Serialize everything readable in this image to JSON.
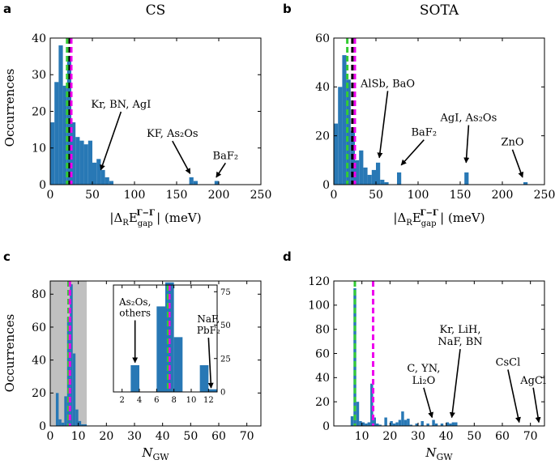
{
  "colors": {
    "bar": "#2878b5",
    "green": "#33cc33",
    "magenta": "#ee00ee",
    "black": "#000000",
    "shade": "#c0c0c0"
  },
  "panel_labels": [
    "a",
    "b",
    "c",
    "d"
  ],
  "chart_data": [
    {
      "id": "a",
      "type": "bar",
      "title": "CS",
      "xlabel": "|ΔR E_gap^{Γ−Γ}| (meV)",
      "ylabel": "Occurrences",
      "xlim": [
        0,
        250
      ],
      "ylim": [
        0,
        40
      ],
      "xticks": [
        0,
        50,
        100,
        150,
        200,
        250
      ],
      "yticks": [
        0,
        10,
        20,
        30,
        40
      ],
      "bin_width": 5,
      "bins": [
        {
          "x": 0,
          "y": 17
        },
        {
          "x": 5,
          "y": 28
        },
        {
          "x": 10,
          "y": 38
        },
        {
          "x": 15,
          "y": 27
        },
        {
          "x": 20,
          "y": 35
        },
        {
          "x": 25,
          "y": 17
        },
        {
          "x": 30,
          "y": 13
        },
        {
          "x": 35,
          "y": 12
        },
        {
          "x": 40,
          "y": 11
        },
        {
          "x": 45,
          "y": 12
        },
        {
          "x": 50,
          "y": 6
        },
        {
          "x": 55,
          "y": 7
        },
        {
          "x": 60,
          "y": 4
        },
        {
          "x": 65,
          "y": 2
        },
        {
          "x": 70,
          "y": 1
        },
        {
          "x": 165,
          "y": 2
        },
        {
          "x": 170,
          "y": 1
        },
        {
          "x": 195,
          "y": 1
        }
      ],
      "vlines": [
        {
          "x": 20,
          "color": "green"
        },
        {
          "x": 23,
          "color": "black"
        },
        {
          "x": 25,
          "color": "magenta"
        }
      ],
      "annotations": [
        {
          "lines": [
            "Kr, BN, AgI"
          ],
          "x": 84,
          "y": 21,
          "ax": 60,
          "ay": 4
        },
        {
          "lines": [
            "KF, As₂Os"
          ],
          "x": 145,
          "y": 13,
          "ax": 166,
          "ay": 3
        },
        {
          "lines": [
            "BaF₂"
          ],
          "x": 208,
          "y": 7,
          "ax": 197,
          "ay": 2
        }
      ]
    },
    {
      "id": "b",
      "type": "bar",
      "title": "SOTA",
      "xlabel": "|ΔR E_gap^{Γ−Γ}| (meV)",
      "ylabel": "",
      "xlim": [
        0,
        250
      ],
      "ylim": [
        0,
        60
      ],
      "xticks": [
        0,
        50,
        100,
        150,
        200,
        250
      ],
      "yticks": [
        0,
        20,
        40,
        60
      ],
      "bin_width": 5,
      "bins": [
        {
          "x": 0,
          "y": 25
        },
        {
          "x": 5,
          "y": 40
        },
        {
          "x": 10,
          "y": 53
        },
        {
          "x": 15,
          "y": 43
        },
        {
          "x": 20,
          "y": 22
        },
        {
          "x": 25,
          "y": 10
        },
        {
          "x": 30,
          "y": 14
        },
        {
          "x": 35,
          "y": 7
        },
        {
          "x": 40,
          "y": 4
        },
        {
          "x": 45,
          "y": 6
        },
        {
          "x": 50,
          "y": 9
        },
        {
          "x": 55,
          "y": 2
        },
        {
          "x": 60,
          "y": 1
        },
        {
          "x": 75,
          "y": 5
        },
        {
          "x": 155,
          "y": 5
        },
        {
          "x": 225,
          "y": 1
        }
      ],
      "vlines": [
        {
          "x": 16,
          "color": "green"
        },
        {
          "x": 22,
          "color": "black"
        },
        {
          "x": 25,
          "color": "magenta"
        }
      ],
      "annotations": [
        {
          "lines": [
            "AlSb, BaO"
          ],
          "x": 64,
          "y": 40,
          "ax": 54,
          "ay": 11
        },
        {
          "lines": [
            "BaF₂"
          ],
          "x": 107,
          "y": 20,
          "ax": 80,
          "ay": 8
        },
        {
          "lines": [
            "AgI, As₂Os"
          ],
          "x": 160,
          "y": 26,
          "ax": 157,
          "ay": 9
        },
        {
          "lines": [
            "ZnO"
          ],
          "x": 212,
          "y": 16,
          "ax": 224,
          "ay": 3
        }
      ]
    },
    {
      "id": "c",
      "type": "bar",
      "title": "",
      "xlabel": "N_GW",
      "ylabel": "Occurrences",
      "xlim": [
        0,
        75
      ],
      "ylim": [
        0,
        88
      ],
      "xticks": [
        0,
        10,
        20,
        30,
        40,
        50,
        60,
        70
      ],
      "yticks": [
        0,
        20,
        40,
        60,
        80
      ],
      "bin_width": 1,
      "shaded_region": [
        0,
        13
      ],
      "bins": [
        {
          "x": 2,
          "y": 20
        },
        {
          "x": 3,
          "y": 4
        },
        {
          "x": 4,
          "y": 2
        },
        {
          "x": 5,
          "y": 18
        },
        {
          "x": 6,
          "y": 66
        },
        {
          "x": 7,
          "y": 86
        },
        {
          "x": 8,
          "y": 44
        },
        {
          "x": 9,
          "y": 10
        },
        {
          "x": 10,
          "y": 3
        },
        {
          "x": 11,
          "y": 1
        },
        {
          "x": 12,
          "y": 1
        }
      ],
      "vlines": [
        {
          "x": 6.5,
          "color": "green"
        },
        {
          "x": 7.0,
          "color": "magenta"
        }
      ],
      "inset": {
        "xlim": [
          1,
          13
        ],
        "ylim": [
          0,
          80
        ],
        "xticks": [
          2,
          4,
          6,
          8,
          10,
          12
        ],
        "yticks": [
          0,
          25,
          50,
          75
        ],
        "bins": [
          {
            "x": 3,
            "y": 20
          },
          {
            "x": 6,
            "y": 64
          },
          {
            "x": 7,
            "y": 82
          },
          {
            "x": 8,
            "y": 41
          },
          {
            "x": 11,
            "y": 20
          },
          {
            "x": 12,
            "y": 2
          }
        ],
        "vlines": [
          {
            "x": 7.3,
            "color": "green"
          },
          {
            "x": 7.5,
            "color": "magenta"
          }
        ],
        "annotations": [
          {
            "lines": [
              "As₂Os,",
              "others"
            ],
            "x": 3.5,
            "y": 65,
            "ax": 3.5,
            "ay": 22
          },
          {
            "lines": [
              "NaF,",
              "PbF₂"
            ],
            "x": 12,
            "y": 52,
            "ax": 12.3,
            "ay": 3
          }
        ]
      }
    },
    {
      "id": "d",
      "type": "bar",
      "title": "",
      "xlabel": "N_GW",
      "ylabel": "",
      "xlim": [
        0,
        75
      ],
      "ylim": [
        0,
        120
      ],
      "xticks": [
        10,
        20,
        30,
        40,
        50,
        60,
        70
      ],
      "yticks": [
        0,
        20,
        40,
        60,
        80,
        100,
        120
      ],
      "bin_width": 1,
      "bins": [
        {
          "x": 6,
          "y": 8
        },
        {
          "x": 7,
          "y": 114
        },
        {
          "x": 8,
          "y": 20
        },
        {
          "x": 9,
          "y": 4
        },
        {
          "x": 10,
          "y": 3
        },
        {
          "x": 11,
          "y": 2
        },
        {
          "x": 12,
          "y": 3
        },
        {
          "x": 13,
          "y": 35
        },
        {
          "x": 14,
          "y": 7
        },
        {
          "x": 15,
          "y": 2
        },
        {
          "x": 16,
          "y": 1
        },
        {
          "x": 18,
          "y": 7
        },
        {
          "x": 20,
          "y": 4
        },
        {
          "x": 21,
          "y": 2
        },
        {
          "x": 22,
          "y": 3
        },
        {
          "x": 23,
          "y": 5
        },
        {
          "x": 24,
          "y": 12
        },
        {
          "x": 25,
          "y": 5
        },
        {
          "x": 26,
          "y": 6
        },
        {
          "x": 27,
          "y": 1
        },
        {
          "x": 29,
          "y": 2
        },
        {
          "x": 31,
          "y": 4
        },
        {
          "x": 33,
          "y": 2
        },
        {
          "x": 35,
          "y": 5
        },
        {
          "x": 36,
          "y": 2
        },
        {
          "x": 38,
          "y": 2
        },
        {
          "x": 40,
          "y": 3
        },
        {
          "x": 41,
          "y": 2
        },
        {
          "x": 42,
          "y": 3
        },
        {
          "x": 43,
          "y": 3
        }
      ],
      "vlines": [
        {
          "x": 7.5,
          "color": "green"
        },
        {
          "x": 14,
          "color": "magenta"
        }
      ],
      "annotations": [
        {
          "lines": [
            "C, YN,",
            "Li₂O"
          ],
          "x": 32,
          "y": 45,
          "ax": 35,
          "ay": 7
        },
        {
          "lines": [
            "Kr, LiH,",
            "NaF, BN"
          ],
          "x": 45,
          "y": 77,
          "ax": 42,
          "ay": 7
        },
        {
          "lines": [
            "CsCl"
          ],
          "x": 62,
          "y": 50,
          "ax": 66,
          "ay": 3
        },
        {
          "lines": [
            "AgCl"
          ],
          "x": 71,
          "y": 35,
          "ax": 73,
          "ay": 3
        }
      ]
    }
  ]
}
